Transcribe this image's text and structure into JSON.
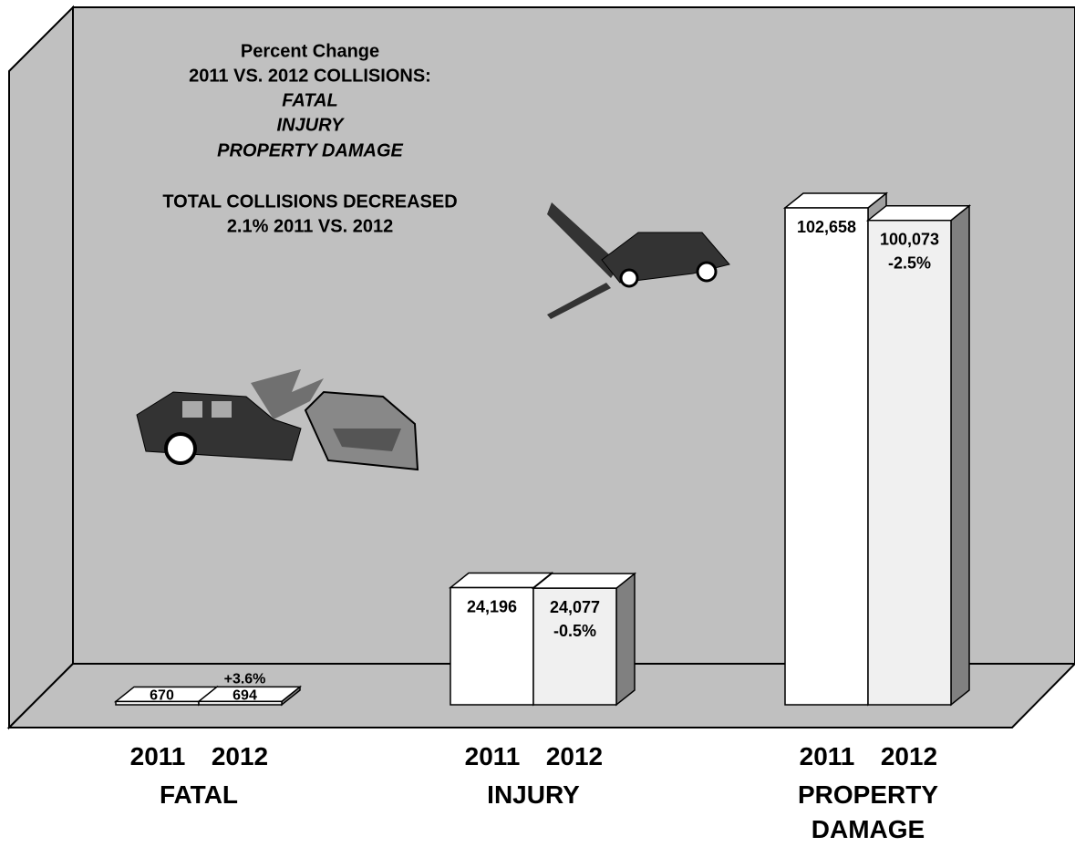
{
  "chart_data": {
    "type": "bar3d",
    "title": "Percent Change",
    "subtitle": "2011 VS. 2012 COLLISIONS:",
    "title_items": [
      "FATAL",
      "INJURY",
      "PROPERTY DAMAGE"
    ],
    "note": [
      "TOTAL COLLISIONS DECREASED",
      "2.1% 2011 VS. 2012"
    ],
    "categories": [
      "FATAL",
      "INJURY",
      "PROPERTY DAMAGE"
    ],
    "series": [
      {
        "name": "2011",
        "color": "#ffffff",
        "values": [
          670,
          24196,
          102658
        ],
        "value_labels": [
          "670",
          "24,196",
          "102,658"
        ]
      },
      {
        "name": "2012",
        "color": "#f0f0f0",
        "values": [
          694,
          24077,
          100073
        ],
        "value_labels": [
          "694",
          "24,077",
          "100,073"
        ]
      }
    ],
    "change_labels": [
      "+3.6%",
      "-0.5%",
      "-2.5%"
    ]
  }
}
